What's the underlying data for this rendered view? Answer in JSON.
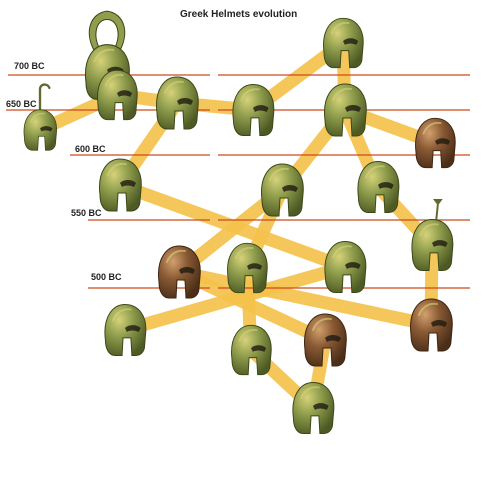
{
  "title": "Greek Helmets evolution",
  "dates": [
    "700 BC",
    "650 BC",
    "600 BC",
    "550 BC",
    "500 BC"
  ],
  "colors": {
    "timeline": "#cc4a1e",
    "branch": "#f5c24a",
    "bronze_green": "#8f9d4c",
    "bronze_dark": "#5f6a2c",
    "bronze_brown": "#8a5a34",
    "highlight": "#d6d27a"
  },
  "helmets": [
    {
      "name": "crested-kegelhelm",
      "tone": "green",
      "crest": "horseshoe"
    },
    {
      "name": "kegelhelm-with-hook-crest",
      "tone": "green",
      "crest": "hook"
    },
    {
      "name": "early-corinthian",
      "tone": "green",
      "crest": "none"
    },
    {
      "name": "corinthian-round",
      "tone": "green",
      "crest": "none"
    },
    {
      "name": "corinthian-curved",
      "tone": "green",
      "crest": "none"
    },
    {
      "name": "illyrian-open",
      "tone": "green",
      "crest": "none"
    },
    {
      "name": "corinthian-tall",
      "tone": "green",
      "crest": "none"
    },
    {
      "name": "illyrian-left",
      "tone": "green",
      "crest": "none"
    },
    {
      "name": "corinthian-archaic",
      "tone": "green",
      "crest": "none"
    },
    {
      "name": "corinthian-dark",
      "tone": "brown",
      "crest": "none"
    },
    {
      "name": "corinthian-mid",
      "tone": "green",
      "crest": "none"
    },
    {
      "name": "corinthian-right",
      "tone": "green",
      "crest": "none"
    },
    {
      "name": "chalcidian-crested",
      "tone": "green",
      "crest": "spike"
    },
    {
      "name": "chalcidian-left",
      "tone": "green",
      "crest": "none"
    },
    {
      "name": "corinthian-bronze",
      "tone": "brown",
      "crest": "none"
    },
    {
      "name": "chalcidian-lower",
      "tone": "green",
      "crest": "none"
    },
    {
      "name": "corinthian-late",
      "tone": "brown",
      "crest": "none"
    },
    {
      "name": "thracian-right",
      "tone": "green",
      "crest": "none"
    },
    {
      "name": "corinthian-decorated",
      "tone": "brown",
      "crest": "none"
    },
    {
      "name": "attic-bottom",
      "tone": "green",
      "crest": "none"
    }
  ]
}
